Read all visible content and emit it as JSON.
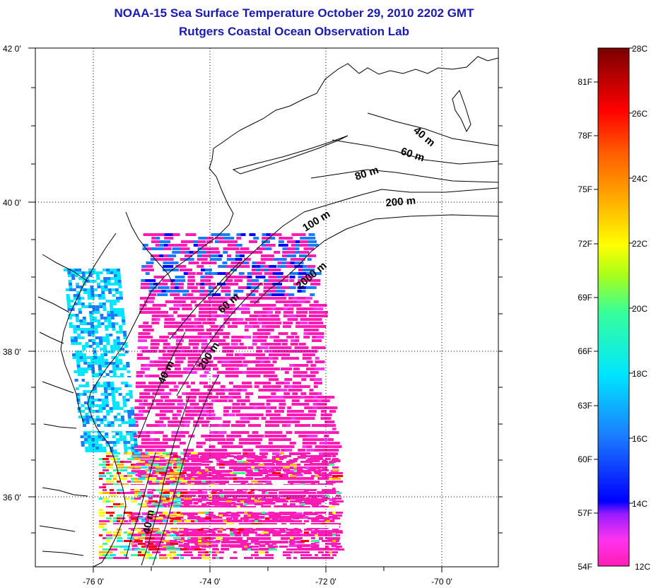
{
  "title": "NOAA-15 Sea Surface Temperature October 29, 2010 2202 GMT",
  "subtitle": "Rutgers Coastal Ocean Observation Lab",
  "latitude_labels": [
    "42 0'",
    "40 0'",
    "38 0'",
    "36 0'"
  ],
  "longitude_labels": [
    "-76 0'",
    "-74 0'",
    "-72 0'",
    "-70 0'"
  ],
  "contour_labels": [
    "40 m",
    "60 m",
    "80 m",
    "200 m",
    "100 m",
    "2000 m",
    "60 m",
    "200 m",
    "40 m",
    "40 m"
  ],
  "colorbar": {
    "fahrenheit_labels": [
      "81F",
      "78F",
      "75F",
      "72F",
      "69F",
      "66F",
      "63F",
      "60F",
      "57F",
      "54F"
    ],
    "celsius_labels": [
      "28C",
      "26C",
      "24C",
      "22C",
      "20C",
      "18C",
      "16C",
      "14C",
      "12C"
    ],
    "range_c": [
      12,
      28
    ],
    "colors": [
      "#ff1cb4",
      "#ff33ee",
      "#9a1cff",
      "#0000ff",
      "#1b7bff",
      "#00e6ff",
      "#37ff9a",
      "#a6ff1c",
      "#ffff00",
      "#ffb300",
      "#ff5a00",
      "#ff0000",
      "#a00000",
      "#7a0000"
    ]
  },
  "colors": {
    "title": "#1a1ab0",
    "land_line": "#000000",
    "sst_cool": "#ff1cb4",
    "sst_bay": "#1fc6f2"
  }
}
